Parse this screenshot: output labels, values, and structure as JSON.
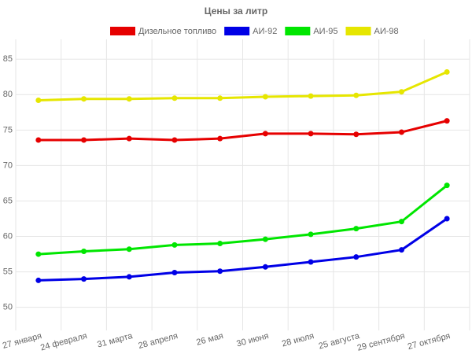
{
  "chart_data": {
    "type": "line",
    "title": "Цены за литр",
    "categories": [
      "27 января",
      "24 февраля",
      "31 марта",
      "28 апреля",
      "26 мая",
      "30 июня",
      "28 июля",
      "25 августа",
      "29 сентября",
      "27 октября"
    ],
    "series": [
      {
        "name": "Дизельное топливо",
        "color": "#e60000",
        "values": [
          73.6,
          73.6,
          73.8,
          73.6,
          73.8,
          74.5,
          74.5,
          74.4,
          74.7,
          76.3
        ]
      },
      {
        "name": "АИ-92",
        "color": "#0000e6",
        "values": [
          53.8,
          54.0,
          54.3,
          54.9,
          55.1,
          55.7,
          56.4,
          57.1,
          58.1,
          62.5
        ]
      },
      {
        "name": "АИ-95",
        "color": "#00e600",
        "values": [
          57.5,
          57.9,
          58.2,
          58.8,
          59.0,
          59.6,
          60.3,
          61.1,
          62.1,
          67.2
        ]
      },
      {
        "name": "АИ-98",
        "color": "#e6e600",
        "values": [
          79.2,
          79.4,
          79.4,
          79.5,
          79.5,
          79.7,
          79.8,
          79.9,
          80.4,
          83.2
        ]
      }
    ],
    "ylim": [
      47.3,
      87.8
    ],
    "yticks": [
      50,
      55,
      60,
      65,
      70,
      75,
      80,
      85
    ],
    "grid": true,
    "legend": "top"
  }
}
